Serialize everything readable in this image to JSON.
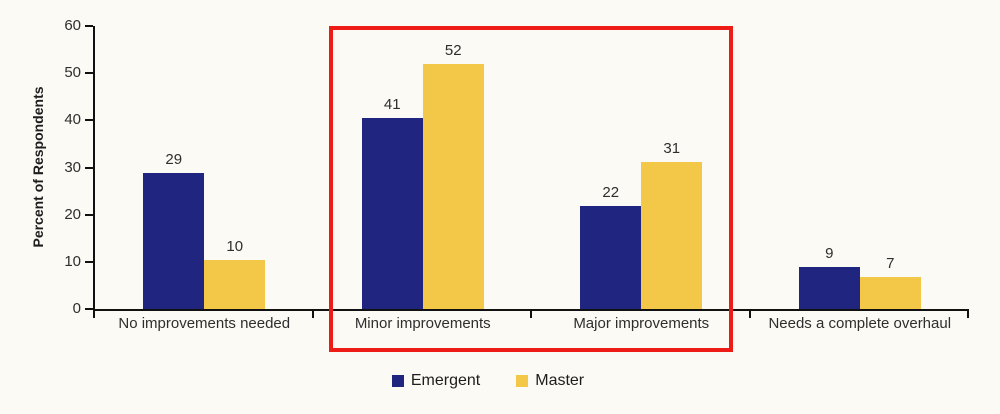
{
  "figure": {
    "background_color": "#FCFAF4",
    "axis_color": "#111111",
    "text_color": "#2e2e2e"
  },
  "chart_data": {
    "type": "bar",
    "title": "",
    "xlabel": "",
    "ylabel": "Percent of Respondents",
    "ylim": [
      0,
      60
    ],
    "y_ticks": [
      0,
      10,
      20,
      30,
      40,
      50,
      60
    ],
    "grid": false,
    "legend_position": "bottom",
    "categories": [
      "No improvements needed",
      "Minor improvements",
      "Major improvements",
      "Needs a complete overhaul"
    ],
    "series": [
      {
        "name": "Emergent",
        "color": "#20257F",
        "values": [
          29,
          41,
          22,
          9
        ],
        "drawn_heights": [
          28.8,
          40.5,
          21.8,
          8.9
        ]
      },
      {
        "name": "Master",
        "color": "#F3C748",
        "values": [
          10,
          52,
          31,
          7
        ],
        "drawn_heights": [
          10.3,
          52.0,
          31.2,
          6.8
        ]
      }
    ],
    "annotations": [
      {
        "type": "highlight-box",
        "color": "#ED1C16",
        "categories_covered": [
          "Minor improvements",
          "Major improvements"
        ]
      }
    ]
  }
}
